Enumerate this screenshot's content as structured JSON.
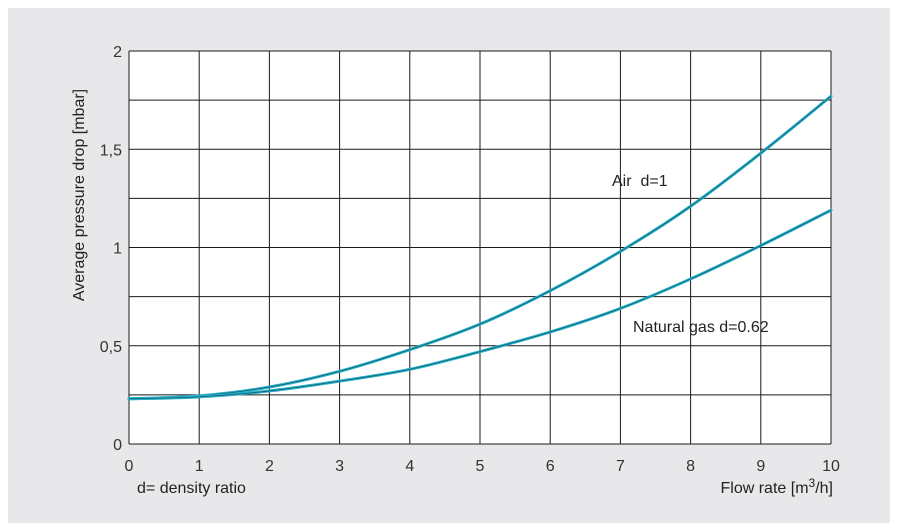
{
  "chart_data": {
    "type": "line",
    "title": "",
    "xlabel_unit": "Flow rate [m",
    "xlabel_sup": "3",
    "xlabel_end": "/h]",
    "ylabel": "Average pressure drop [mbar]",
    "note": "d= density ratio",
    "xlim": [
      0,
      10
    ],
    "ylim": [
      0,
      2
    ],
    "x_ticks": [
      "0",
      "1",
      "2",
      "3",
      "4",
      "5",
      "6",
      "7",
      "8",
      "9",
      "10"
    ],
    "y_ticks": [
      {
        "value": 0,
        "label": "0"
      },
      {
        "value": 0.5,
        "label": "0,5"
      },
      {
        "value": 1,
        "label": "1"
      },
      {
        "value": 1.5,
        "label": "1,5"
      },
      {
        "value": 2,
        "label": "2"
      }
    ],
    "grid": true,
    "line_color": "#2ab0c8",
    "series": [
      {
        "name": "Air  d=1",
        "x": [
          0,
          1,
          2,
          3,
          4,
          5,
          6,
          7,
          8,
          9,
          10
        ],
        "values": [
          0.23,
          0.245,
          0.29,
          0.37,
          0.48,
          0.61,
          0.78,
          0.98,
          1.21,
          1.48,
          1.77
        ]
      },
      {
        "name": "Natural gas d=0.62",
        "x": [
          0,
          1,
          2,
          3,
          4,
          5,
          6,
          7,
          8,
          9,
          10
        ],
        "values": [
          0.23,
          0.24,
          0.27,
          0.32,
          0.38,
          0.47,
          0.57,
          0.69,
          0.84,
          1.01,
          1.19
        ]
      }
    ]
  }
}
